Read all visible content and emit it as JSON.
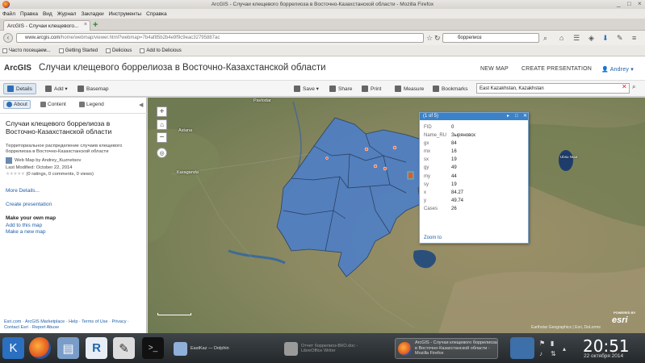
{
  "window": {
    "title": "ArcGIS - Случаи клещевого боррелиоза в Восточно-Казахстанской области - Mozilla Firefox",
    "controls": [
      "_",
      "□",
      "×"
    ]
  },
  "menu": [
    "Файл",
    "Правка",
    "Вид",
    "Журнал",
    "Закладки",
    "Инструменты",
    "Справка"
  ],
  "tab": {
    "label": "ArcGIS - Случаи клещевого...",
    "close": "×"
  },
  "nav": {
    "url_site": "www.arcgis.com",
    "url_rest": "/home/webmap/viewer.html?webmap=7b4af85b2b4e9f9c9eac32795887ac",
    "search_value": "боррелиоз"
  },
  "bookmarks": [
    "Часто посещаем...",
    "Getting Started",
    "Delicious",
    "Add to Delicious"
  ],
  "arcgis": {
    "logo": "ArcGIS",
    "title": "Случаи клещевого боррелиоза в Восточно-Казахстанской области",
    "new_map": "NEW MAP",
    "create_presentation": "CREATE PRESENTATION",
    "user": "Andrey"
  },
  "toolbar": {
    "details": "Details",
    "add": "Add",
    "basemap": "Basemap",
    "save": "Save",
    "share": "Share",
    "print": "Print",
    "measure": "Measure",
    "bookmarks": "Bookmarks",
    "search_value": "East Kazakhstan, Kazakhstan"
  },
  "left_panel": {
    "tabs": [
      "About",
      "Content",
      "Legend"
    ],
    "title": "Случаи клещевого боррелиоза в Восточно-Казахстанской области",
    "description": "Территориальное распределение случаев клещевого боррелиоза в Восточно-Казахстанской области",
    "owner": "Web Map by Andrey_Kuznetsov",
    "modified": "Last Modified: October 22, 2014",
    "ratings": "(0 ratings, 0 comments, 0 views)",
    "more_details": "More Details...",
    "create_presentation": "Create presentation",
    "make_own": "Make your own map",
    "add_to_map": "Add to this map",
    "make_new": "Make a new map",
    "footer": "Esri.com · ArcGIS Marketplace · Help · Terms of Use · Privacy · Contact Esri · Report Abuse"
  },
  "map": {
    "labels": {
      "pavlodar": "Pavlodar",
      "astana": "Astana",
      "karaganda": "Karaganda",
      "lake": "Ubsu Nuur"
    },
    "attribution": "Earthstar Geographics | Esri, DeLorme",
    "esri": "esri",
    "esri_small": "POWERED BY"
  },
  "popup": {
    "header": "(1 of 5)",
    "fields": [
      {
        "k": "FID",
        "v": "0"
      },
      {
        "k": "Name_RU",
        "v": "Зыряновск"
      },
      {
        "k": "gx",
        "v": "84"
      },
      {
        "k": "mx",
        "v": "16"
      },
      {
        "k": "sx",
        "v": "19"
      },
      {
        "k": "gy",
        "v": "49"
      },
      {
        "k": "my",
        "v": "44"
      },
      {
        "k": "sy",
        "v": "19"
      },
      {
        "k": "x",
        "v": "84.27"
      },
      {
        "k": "y",
        "v": "49.74"
      },
      {
        "k": "Cases",
        "v": "26"
      }
    ],
    "zoom_to": "Zoom to"
  },
  "taskbar": {
    "tasks": [
      {
        "label": "EastKaz — Dolphin"
      },
      {
        "label": "Отчет боррелиоз-ВКО.doc - LibreOffice Writer"
      },
      {
        "label": "ArcGIS - Случаи клещевого боррелиоза в Восточно-Казахстанской области - Mozilla Firefox"
      }
    ],
    "clock": "20:51",
    "date": "22 октября 2014"
  }
}
